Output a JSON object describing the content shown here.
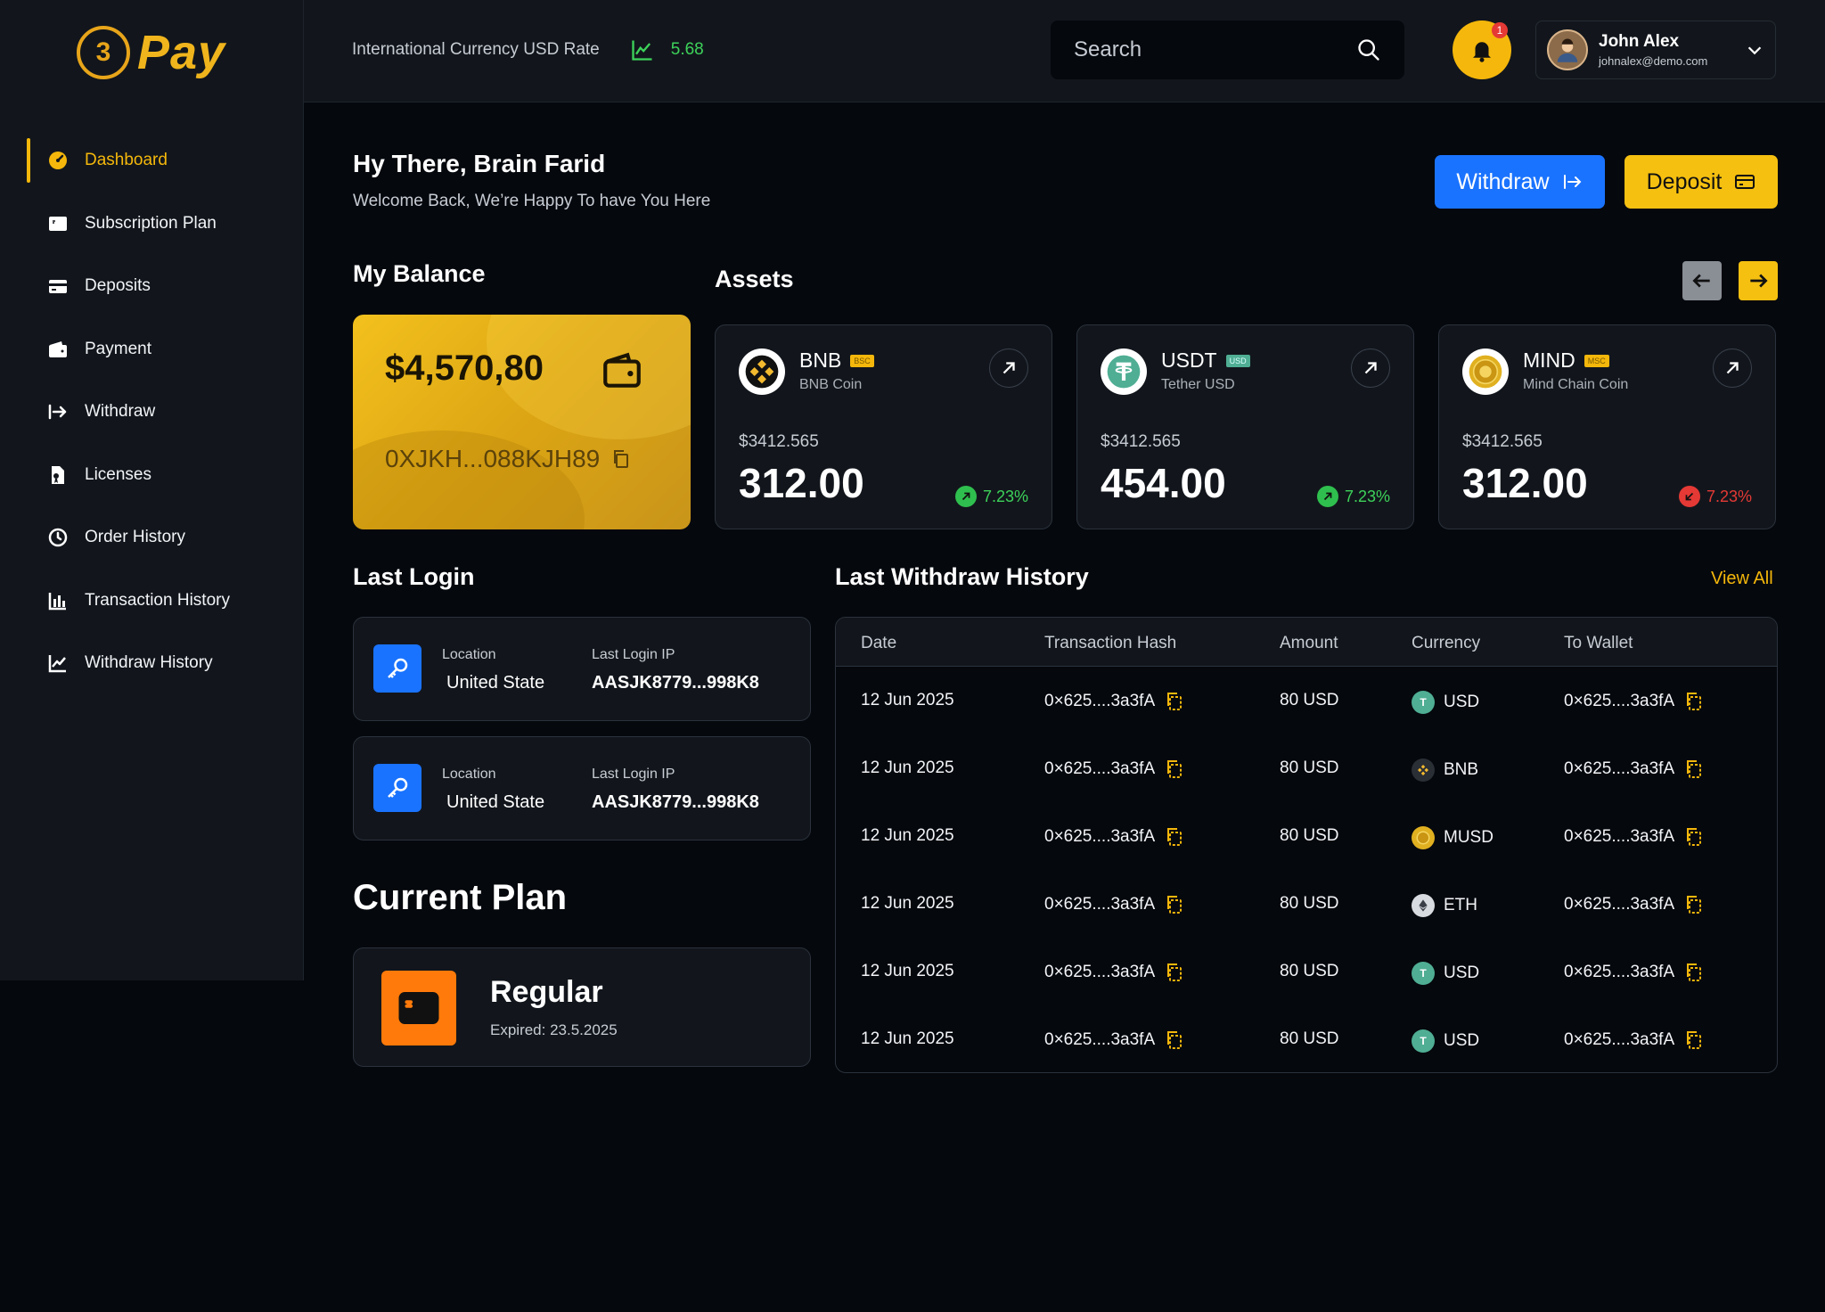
{
  "app": {
    "logo_text": "Pay",
    "logo_coin": "3"
  },
  "sidebar": {
    "items": [
      {
        "label": "Dashboard",
        "icon": "dashboard-icon",
        "active": true
      },
      {
        "label": "Subscription Plan",
        "icon": "card-icon"
      },
      {
        "label": "Deposits",
        "icon": "deposit-icon"
      },
      {
        "label": "Payment",
        "icon": "wallet-icon"
      },
      {
        "label": "Withdraw",
        "icon": "withdraw-icon"
      },
      {
        "label": "Licenses",
        "icon": "license-icon"
      },
      {
        "label": "Order History",
        "icon": "history-icon"
      },
      {
        "label": "Transaction History",
        "icon": "bar-chart-icon"
      },
      {
        "label": "Withdraw History",
        "icon": "line-chart-icon"
      }
    ]
  },
  "header": {
    "rate_label": "International Currency USD Rate",
    "rate_value": "5.68",
    "search_placeholder": "Search",
    "notification_count": "1",
    "user_name": "John Alex",
    "user_email": "johnalex@demo.com"
  },
  "greeting": {
    "title": "Hy There, Brain Farid",
    "subtitle": "Welcome Back, We’re Happy To have You Here"
  },
  "actions": {
    "withdraw": "Withdraw",
    "deposit": "Deposit"
  },
  "balance": {
    "title": "My Balance",
    "amount": "$4,570,80",
    "address": "0XJKH...088KJH89"
  },
  "assets": {
    "title": "Assets",
    "items": [
      {
        "name": "BNB",
        "tag": "BSC",
        "sub": "BNB Coin",
        "price": "$3412.565",
        "amount": "312.00",
        "change": "7.23%",
        "direction": "up"
      },
      {
        "name": "USDT",
        "tag": "USD",
        "sub": "Tether USD",
        "price": "$3412.565",
        "amount": "454.00",
        "change": "7.23%",
        "direction": "up"
      },
      {
        "name": "MIND",
        "tag": "MSC",
        "sub": "Mind Chain Coin",
        "price": "$3412.565",
        "amount": "312.00",
        "change": "7.23%",
        "direction": "down"
      }
    ]
  },
  "last_login": {
    "title": "Last Login",
    "location_label": "Location",
    "ip_label": "Last Login IP",
    "items": [
      {
        "location": "United State",
        "ip": "AASJK8779...998K8"
      },
      {
        "location": "United State",
        "ip": "AASJK8779...998K8"
      }
    ]
  },
  "plan": {
    "title": "Current Plan",
    "name": "Regular",
    "expired": "Expired: 23.5.2025"
  },
  "withdraw_history": {
    "title": "Last Withdraw History",
    "view_all": "View All",
    "columns": [
      "Date",
      "Transaction Hash",
      "Amount",
      "Currency",
      "To Wallet"
    ],
    "rows": [
      {
        "date": "12 Jun 2025",
        "hash": "0×625....3a3fA",
        "amount": "80 USD",
        "currency": "USD",
        "wallet": "0×625....3a3fA"
      },
      {
        "date": "12 Jun 2025",
        "hash": "0×625....3a3fA",
        "amount": "80 USD",
        "currency": "BNB",
        "wallet": "0×625....3a3fA"
      },
      {
        "date": "12 Jun 2025",
        "hash": "0×625....3a3fA",
        "amount": "80 USD",
        "currency": "MUSD",
        "wallet": "0×625....3a3fA"
      },
      {
        "date": "12 Jun 2025",
        "hash": "0×625....3a3fA",
        "amount": "80 USD",
        "currency": "ETH",
        "wallet": "0×625....3a3fA"
      },
      {
        "date": "12 Jun 2025",
        "hash": "0×625....3a3fA",
        "amount": "80 USD",
        "currency": "USD",
        "wallet": "0×625....3a3fA"
      },
      {
        "date": "12 Jun 2025",
        "hash": "0×625....3a3fA",
        "amount": "80 USD",
        "currency": "USD",
        "wallet": "0×625....3a3fA"
      }
    ]
  },
  "colors": {
    "accent": "#f5b70b",
    "primary": "#1a73ff",
    "up": "#3dd25a",
    "down": "#e53935",
    "plan": "#ff7a0a"
  }
}
